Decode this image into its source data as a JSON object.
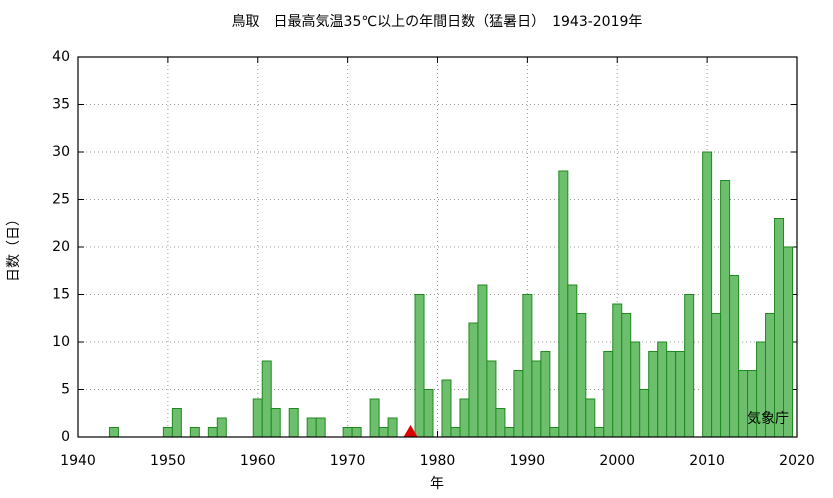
{
  "chart_data": {
    "type": "bar",
    "title": "鳥取　日最高気温35℃以上の年間日数（猛暑日）　1943-2019年",
    "xlabel": "年",
    "ylabel": "日数（日）",
    "annotation": "気象庁",
    "x": [
      1943,
      1944,
      1945,
      1946,
      1947,
      1948,
      1949,
      1950,
      1951,
      1952,
      1953,
      1954,
      1955,
      1956,
      1957,
      1958,
      1959,
      1960,
      1961,
      1962,
      1963,
      1964,
      1965,
      1966,
      1967,
      1968,
      1969,
      1970,
      1971,
      1972,
      1973,
      1974,
      1975,
      1976,
      1977,
      1978,
      1979,
      1980,
      1981,
      1982,
      1983,
      1984,
      1985,
      1986,
      1987,
      1988,
      1989,
      1990,
      1991,
      1992,
      1993,
      1994,
      1995,
      1996,
      1997,
      1998,
      1999,
      2000,
      2001,
      2002,
      2003,
      2004,
      2005,
      2006,
      2007,
      2008,
      2009,
      2010,
      2011,
      2012,
      2013,
      2014,
      2015,
      2016,
      2017,
      2018,
      2019
    ],
    "values": [
      0,
      1,
      0,
      0,
      0,
      0,
      0,
      1,
      3,
      0,
      1,
      0,
      1,
      2,
      0,
      0,
      0,
      4,
      8,
      3,
      0,
      3,
      0,
      2,
      2,
      0,
      0,
      1,
      1,
      0,
      4,
      1,
      2,
      0,
      null,
      15,
      5,
      0,
      6,
      1,
      4,
      12,
      16,
      8,
      3,
      1,
      7,
      15,
      8,
      9,
      1,
      28,
      16,
      13,
      4,
      1,
      9,
      14,
      13,
      10,
      5,
      9,
      10,
      9,
      9,
      15,
      0,
      30,
      13,
      27,
      17,
      7,
      7,
      10,
      13,
      23,
      20
    ],
    "color": "#6dbf6d",
    "edge_color": "#1f8a1f",
    "markers": [
      {
        "x": 1977,
        "color": "#dd0000"
      }
    ],
    "xlim": [
      1940,
      2020
    ],
    "xticks": [
      1940,
      1950,
      1960,
      1970,
      1980,
      1990,
      2000,
      2010,
      2020
    ],
    "ylim": [
      0,
      40
    ],
    "yticks": [
      0,
      5,
      10,
      15,
      20,
      25,
      30,
      35,
      40
    ],
    "grid": true
  }
}
